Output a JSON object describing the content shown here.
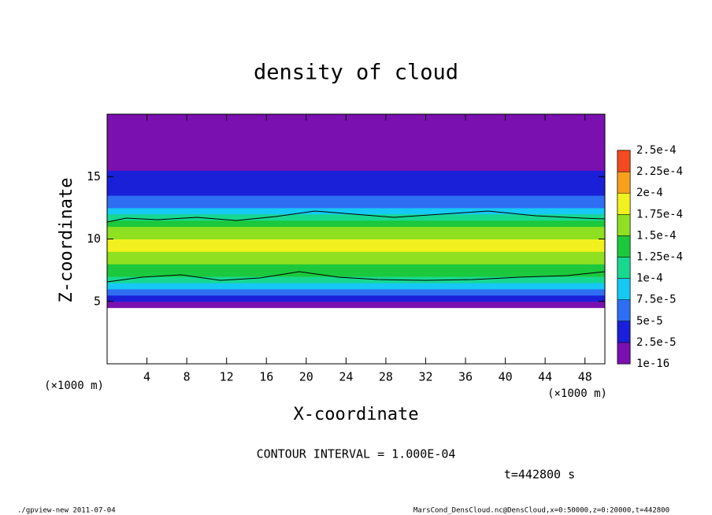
{
  "chart_data": {
    "type": "contour",
    "title": "density of cloud",
    "x_label": "X-coordinate",
    "y_label": "Z-coordinate",
    "x_unit": "(×1000 m)",
    "y_unit": "(×1000 m)",
    "xlim": [
      0,
      50
    ],
    "ylim": [
      0,
      20
    ],
    "xticks": [
      4,
      8,
      12,
      16,
      20,
      24,
      28,
      32,
      36,
      40,
      44,
      48
    ],
    "yticks": [
      5,
      10,
      15
    ],
    "colorbar": {
      "levels": [
        {
          "value": 1e-16,
          "label": "1e-16"
        },
        {
          "value": 2.5e-05,
          "label": "2.5e-5"
        },
        {
          "value": 5e-05,
          "label": "5e-5"
        },
        {
          "value": 7.5e-05,
          "label": "7.5e-5"
        },
        {
          "value": 0.0001,
          "label": "1e-4"
        },
        {
          "value": 0.000125,
          "label": "1.25e-4"
        },
        {
          "value": 0.00015,
          "label": "1.5e-4"
        },
        {
          "value": 0.000175,
          "label": "1.75e-4"
        },
        {
          "value": 0.0002,
          "label": "2e-4"
        },
        {
          "value": 0.000225,
          "label": "2.25e-4"
        },
        {
          "value": 0.00025,
          "label": "2.5e-4"
        }
      ],
      "colors": [
        "#7a10b0",
        "#1a20d8",
        "#2e6ef2",
        "#16c8f4",
        "#18d890",
        "#1cc83c",
        "#8ee020",
        "#f2f01e",
        "#f8a01c",
        "#f44a20"
      ]
    },
    "field": {
      "z": [
        4.75,
        5.25,
        5.75,
        6.25,
        6.75,
        7.25,
        7.75,
        8.25,
        8.75,
        9.25,
        9.75,
        10.25,
        10.75,
        11.25,
        11.75,
        12.25,
        12.75,
        13.25,
        13.75,
        14.25,
        14.75,
        15.25,
        15.75,
        16.25,
        16.75,
        17.25,
        17.75,
        18.25,
        18.75,
        19.25,
        19.75
      ],
      "values": [
        1e-05,
        3e-05,
        6e-05,
        8e-05,
        0.00011,
        0.00013,
        0.00014,
        0.000155,
        0.000165,
        0.00018,
        0.00018,
        0.00017,
        0.00015,
        0.00013,
        0.000105,
        8.5e-05,
        6.5e-05,
        5.5e-05,
        4e-05,
        3.5e-05,
        3e-05,
        2.6e-05,
        2e-05,
        1.5e-05,
        1.2e-05,
        1e-05,
        1e-05,
        1e-05,
        1e-05,
        1e-05,
        1e-05
      ]
    },
    "annotations": [
      "CONTOUR INTERVAL = 1.000E-04",
      "t=442800 s"
    ],
    "footer_left": "./gpview-new  2011-07-04",
    "footer_right": "MarsCond_DensCloud.nc@DensCloud,x=0:50000,z=0:20000,t=442800"
  }
}
